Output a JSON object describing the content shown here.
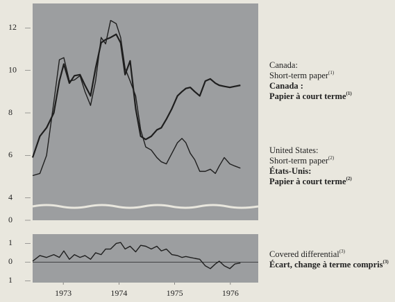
{
  "chart_data": [
    {
      "type": "line",
      "axis_break": true,
      "x": [
        1972.95,
        1973.08,
        1973.2,
        1973.33,
        1973.43,
        1973.51,
        1973.61,
        1973.7,
        1973.8,
        1973.89,
        1973.99,
        1974.08,
        1974.18,
        1974.26,
        1974.35,
        1974.45,
        1974.53,
        1974.61,
        1974.7,
        1974.8,
        1974.89,
        1974.98,
        1975.08,
        1975.18,
        1975.26,
        1975.35,
        1975.45,
        1975.55,
        1975.63,
        1975.7,
        1975.78,
        1975.86,
        1975.95,
        1976.05,
        1976.14,
        1976.23,
        1976.3,
        1976.39,
        1976.49,
        1976.58,
        1976.68
      ],
      "xlim": [
        1972.95,
        1977.0
      ],
      "ylim": [
        3.6,
        13.15
      ],
      "yticks": [
        0,
        4,
        6,
        8,
        10,
        12
      ],
      "series": [
        {
          "name": "Canada:",
          "legend_lines": [
            "Short-term paper",
            "Canada :",
            "Papier à court terme"
          ],
          "note_mark": "(1)",
          "color": "#1e1e1e",
          "width": 2.2,
          "values": [
            5.9,
            6.9,
            7.3,
            8.0,
            9.5,
            10.3,
            9.4,
            9.75,
            9.8,
            9.3,
            8.8,
            10.1,
            11.3,
            11.45,
            11.55,
            11.7,
            11.3,
            9.8,
            10.45,
            8.2,
            6.9,
            6.75,
            6.9,
            7.2,
            7.3,
            7.7,
            8.2,
            8.8,
            9.0,
            9.15,
            9.2,
            9.0,
            8.8,
            9.5,
            9.6,
            9.4,
            9.3,
            9.25,
            9.2,
            9.25,
            9.3
          ]
        },
        {
          "name": "United States:",
          "legend_lines": [
            "Short-term paper",
            "États-Unis:",
            "Papier à court terme"
          ],
          "note_mark": "(2)",
          "color": "#1e1e1e",
          "width": 1.4,
          "values": [
            5.05,
            5.15,
            6.0,
            8.5,
            10.5,
            10.6,
            9.5,
            9.55,
            9.75,
            9.0,
            8.35,
            9.5,
            11.55,
            11.25,
            12.35,
            12.2,
            11.55,
            10.1,
            9.5,
            8.8,
            7.2,
            6.4,
            6.25,
            5.9,
            5.7,
            5.6,
            6.1,
            6.6,
            6.8,
            6.6,
            6.1,
            5.8,
            5.25,
            5.25,
            5.35,
            5.15,
            5.5,
            5.9,
            5.6,
            5.5,
            5.4
          ]
        }
      ]
    },
    {
      "type": "line",
      "baseline": 0,
      "x": [
        1972.95,
        1973.08,
        1973.2,
        1973.33,
        1973.43,
        1973.51,
        1973.61,
        1973.7,
        1973.8,
        1973.89,
        1973.99,
        1974.08,
        1974.18,
        1974.26,
        1974.35,
        1974.45,
        1974.53,
        1974.61,
        1974.7,
        1974.8,
        1974.89,
        1974.98,
        1975.08,
        1975.18,
        1975.26,
        1975.35,
        1975.45,
        1975.55,
        1975.63,
        1975.7,
        1975.78,
        1975.86,
        1975.95,
        1976.05,
        1976.14,
        1976.23,
        1976.3,
        1976.39,
        1976.49,
        1976.58,
        1976.68
      ],
      "xlim": [
        1972.95,
        1977.0
      ],
      "xticks": [
        {
          "value": 1973.5,
          "label": "1973"
        },
        {
          "value": 1974.5,
          "label": "1974"
        },
        {
          "value": 1975.5,
          "label": "1975"
        },
        {
          "value": 1976.5,
          "label": "1976"
        }
      ],
      "ylim": [
        -1.1,
        1.5
      ],
      "yticks": [
        {
          "value": -1,
          "label": "1"
        },
        0,
        1
      ],
      "series": [
        {
          "name": "Covered differential",
          "legend_lines": [
            "Écart, change à terme compris"
          ],
          "note_mark": "(3)",
          "color": "#1e1e1e",
          "width": 1.4,
          "values": [
            0.05,
            0.35,
            0.25,
            0.4,
            0.25,
            0.6,
            0.15,
            0.4,
            0.25,
            0.35,
            0.15,
            0.5,
            0.4,
            0.7,
            0.7,
            1.0,
            1.05,
            0.7,
            0.85,
            0.55,
            0.9,
            0.85,
            0.7,
            0.85,
            0.6,
            0.7,
            0.4,
            0.35,
            0.25,
            0.3,
            0.25,
            0.2,
            0.15,
            -0.2,
            -0.35,
            -0.1,
            0.05,
            -0.2,
            -0.35,
            -0.1,
            -0.05
          ]
        }
      ]
    }
  ]
}
